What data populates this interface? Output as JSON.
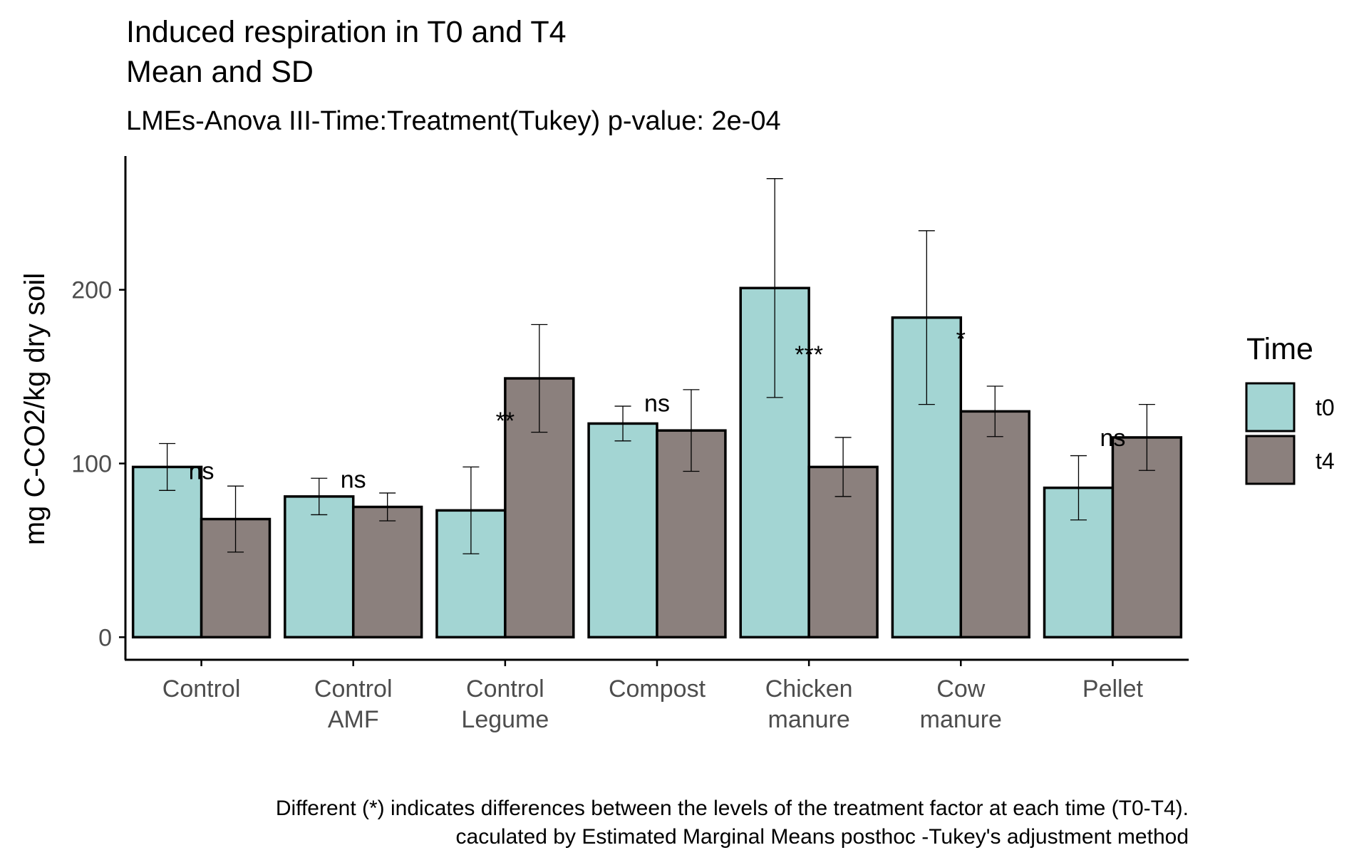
{
  "chart_data": {
    "type": "bar",
    "title_lines": [
      "Induced respiration in T0 and T4",
      "Mean and SD"
    ],
    "subtitle": "LMEs-Anova III-Time:Treatment(Tukey) p-value: 2e-04",
    "ylabel": "mg C-CO2/kg dry soil",
    "xlabel": "",
    "ylim": [
      -13,
      277
    ],
    "yticks": [
      0,
      100,
      200
    ],
    "categories": [
      [
        "Control"
      ],
      [
        "Control",
        "AMF"
      ],
      [
        "Control",
        "Legume"
      ],
      [
        "Compost"
      ],
      [
        "Chicken",
        "manure"
      ],
      [
        "Cow",
        "manure"
      ],
      [
        "Pellet"
      ]
    ],
    "series": [
      {
        "name": "t0",
        "color": "#a3d5d3",
        "values": [
          98,
          81,
          73,
          123,
          201,
          184,
          86
        ],
        "sd": [
          13.5,
          10.5,
          25,
          10,
          63,
          50,
          18.5
        ]
      },
      {
        "name": "t4",
        "color": "#8b807d",
        "values": [
          68,
          75,
          149,
          119,
          98,
          130,
          115
        ],
        "sd": [
          19,
          8,
          31,
          23.5,
          17,
          14.5,
          19
        ]
      }
    ],
    "significance": [
      {
        "label": "ns",
        "y": 91
      },
      {
        "label": "ns",
        "y": 86
      },
      {
        "label": "**",
        "y": 120
      },
      {
        "label": "ns",
        "y": 130
      },
      {
        "label": "***",
        "y": 158
      },
      {
        "label": "*",
        "y": 167
      },
      {
        "label": "ns",
        "y": 110
      }
    ],
    "legend": {
      "title": "Time",
      "position": "right"
    },
    "grid": false,
    "caption_lines": [
      "Different (*) indicates differences between the levels of the treatment factor at each time (T0-T4).",
      "caculated by Estimated Marginal Means posthoc -Tukey's adjustment method"
    ]
  }
}
